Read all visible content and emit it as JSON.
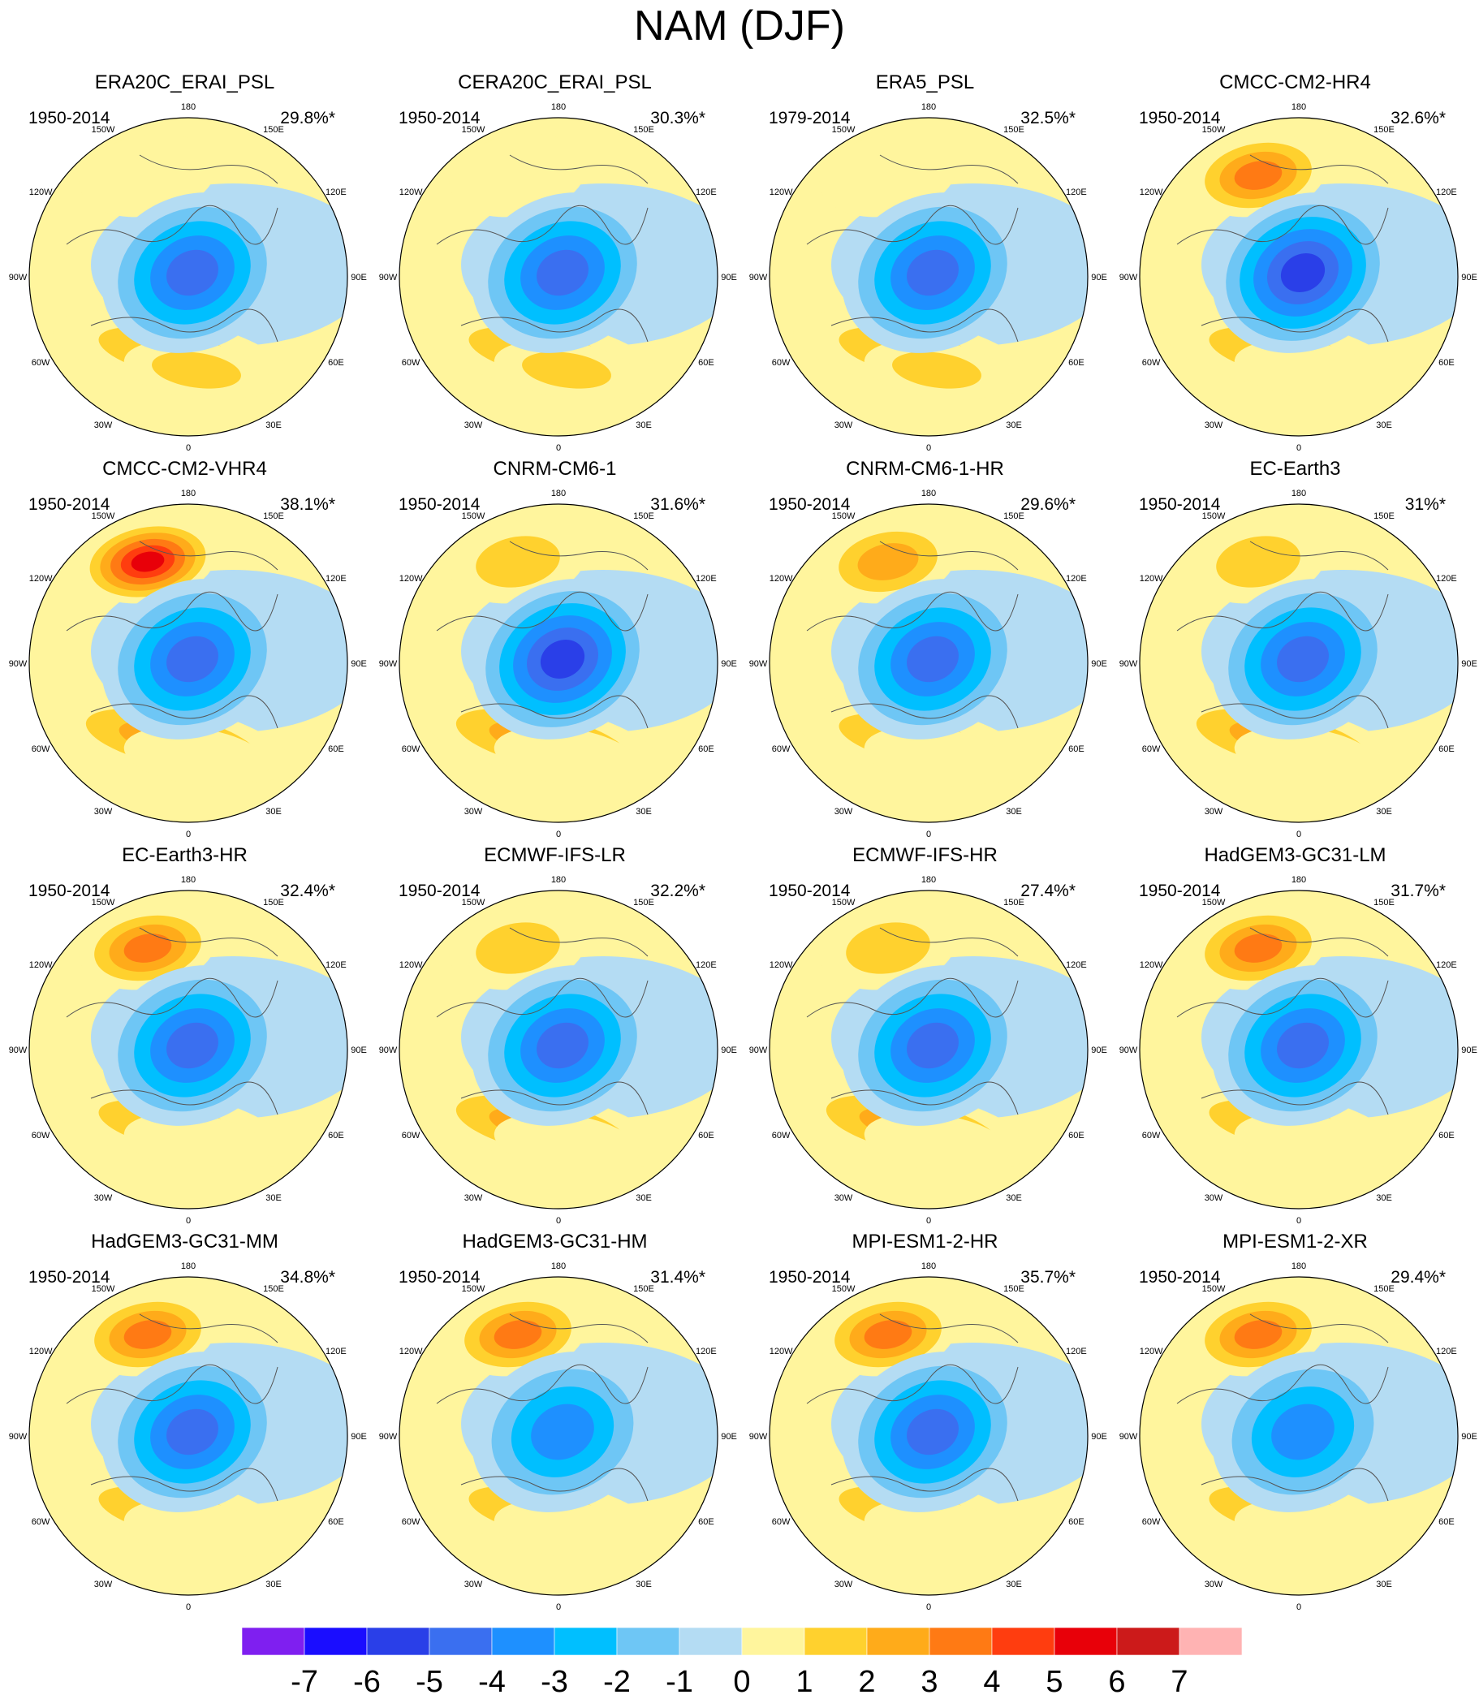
{
  "title": "NAM (DJF)",
  "longitude_labels": [
    "180",
    "150E",
    "120E",
    "90E",
    "60E",
    "30E",
    "0",
    "30W",
    "60W",
    "90W",
    "120W",
    "150W"
  ],
  "panels": [
    {
      "name": "ERA20C_ERAI_PSL",
      "period": "1950-2014",
      "variance": "29.8%*",
      "pacific_high": 1.5,
      "arctic_low": -5.5,
      "atlantic_high": 2.5,
      "euro_high": 2.0
    },
    {
      "name": "CERA20C_ERAI_PSL",
      "period": "1950-2014",
      "variance": "30.3%*",
      "pacific_high": 1.2,
      "arctic_low": -5.5,
      "atlantic_high": 2.5,
      "euro_high": 2.5
    },
    {
      "name": "ERA5_PSL",
      "period": "1979-2014",
      "variance": "32.5%*",
      "pacific_high": 0.8,
      "arctic_low": -5.5,
      "atlantic_high": 2.5,
      "euro_high": 2.5
    },
    {
      "name": "CMCC-CM2-HR4",
      "period": "1950-2014",
      "variance": "32.6%*",
      "pacific_high": 4.5,
      "arctic_low": -6.5,
      "atlantic_high": 2.0,
      "euro_high": 1.5
    },
    {
      "name": "CMCC-CM2-VHR4",
      "period": "1950-2014",
      "variance": "38.1%*",
      "pacific_high": 6.5,
      "arctic_low": -5.5,
      "atlantic_high": 3.5,
      "euro_high": 1.5
    },
    {
      "name": "CNRM-CM6-1",
      "period": "1950-2014",
      "variance": "31.6%*",
      "pacific_high": 2.5,
      "arctic_low": -6.0,
      "atlantic_high": 3.5,
      "euro_high": 1.5
    },
    {
      "name": "CNRM-CM6-1-HR",
      "period": "1950-2014",
      "variance": "29.6%*",
      "pacific_high": 3.5,
      "arctic_low": -5.0,
      "atlantic_high": 2.0,
      "euro_high": 1.5
    },
    {
      "name": "EC-Earth3",
      "period": "1950-2014",
      "variance": "31%*",
      "pacific_high": 2.5,
      "arctic_low": -5.5,
      "atlantic_high": 3.5,
      "euro_high": 1.5
    },
    {
      "name": "EC-Earth3-HR",
      "period": "1950-2014",
      "variance": "32.4%*",
      "pacific_high": 4.5,
      "arctic_low": -5.5,
      "atlantic_high": 2.5,
      "euro_high": 1.5
    },
    {
      "name": "ECMWF-IFS-LR",
      "period": "1950-2014",
      "variance": "32.2%*",
      "pacific_high": 2.0,
      "arctic_low": -5.5,
      "atlantic_high": 3.0,
      "euro_high": 1.5
    },
    {
      "name": "ECMWF-IFS-HR",
      "period": "1950-2014",
      "variance": "27.4%*",
      "pacific_high": 2.0,
      "arctic_low": -5.5,
      "atlantic_high": 3.0,
      "euro_high": 1.5
    },
    {
      "name": "HadGEM3-GC31-LM",
      "period": "1950-2014",
      "variance": "31.7%*",
      "pacific_high": 4.5,
      "arctic_low": -5.5,
      "atlantic_high": 2.5,
      "euro_high": 1.5
    },
    {
      "name": "HadGEM3-GC31-MM",
      "period": "1950-2014",
      "variance": "34.8%*",
      "pacific_high": 4.5,
      "arctic_low": -5.5,
      "atlantic_high": 2.5,
      "euro_high": 1.5
    },
    {
      "name": "HadGEM3-GC31-HM",
      "period": "1950-2014",
      "variance": "31.4%*",
      "pacific_high": 4.5,
      "arctic_low": -4.5,
      "atlantic_high": 2.5,
      "euro_high": 1.5
    },
    {
      "name": "MPI-ESM1-2-HR",
      "period": "1950-2014",
      "variance": "35.7%*",
      "pacific_high": 4.5,
      "arctic_low": -5.5,
      "atlantic_high": 2.5,
      "euro_high": 1.5
    },
    {
      "name": "MPI-ESM1-2-XR",
      "period": "1950-2014",
      "variance": "29.4%*",
      "pacific_high": 4.5,
      "arctic_low": -4.5,
      "atlantic_high": 2.5,
      "euro_high": 1.5
    }
  ],
  "colorbar": {
    "labels": [
      "-7",
      "-6",
      "-5",
      "-4",
      "-3",
      "-2",
      "-1",
      "0",
      "1",
      "2",
      "3",
      "4",
      "5",
      "6",
      "7"
    ],
    "colors": [
      "#7f1ff0",
      "#1a0dff",
      "#2a3fe8",
      "#3a6ff0",
      "#1e90ff",
      "#00bfff",
      "#6ec6f5",
      "#b4dcf3",
      "#fff59d",
      "#ffd12e",
      "#ffab1a",
      "#ff7a14",
      "#ff3d0f",
      "#e80009",
      "#cc1a1a",
      "#ffb3b3"
    ]
  }
}
